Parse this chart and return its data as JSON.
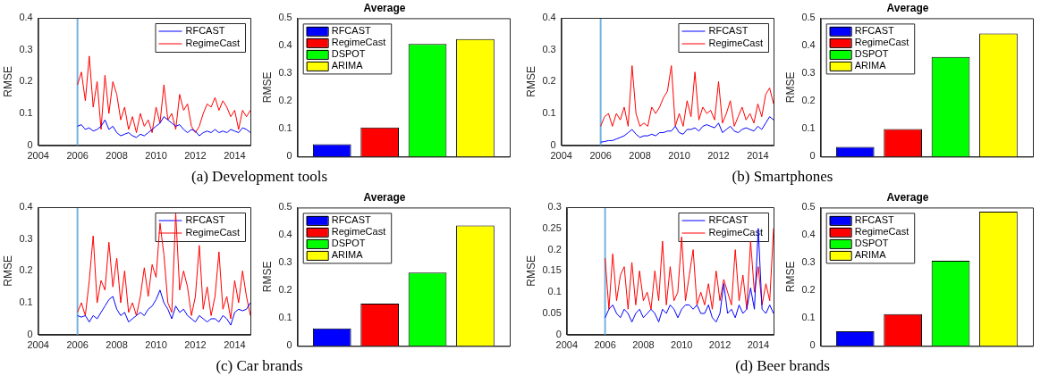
{
  "chart_data": [
    {
      "type": "line",
      "ylabel": "RMSE",
      "annotations": [
        "(a) Development tools"
      ],
      "legend": "top right",
      "x": [
        2006.0,
        2006.2,
        2006.4,
        2006.6,
        2006.8,
        2007.0,
        2007.2,
        2007.4,
        2007.6,
        2007.8,
        2008.0,
        2008.2,
        2008.4,
        2008.6,
        2008.8,
        2009.0,
        2009.2,
        2009.4,
        2009.6,
        2009.8,
        2010.0,
        2010.2,
        2010.4,
        2010.6,
        2010.8,
        2011.0,
        2011.2,
        2011.4,
        2011.6,
        2011.8,
        2012.0,
        2012.2,
        2012.4,
        2012.6,
        2012.8,
        2013.0,
        2013.2,
        2013.4,
        2013.6,
        2013.8,
        2014.0,
        2014.2,
        2014.4,
        2014.6,
        2014.8
      ],
      "xlim": [
        2004,
        2014.8
      ],
      "xticks": [
        2004,
        2006,
        2008,
        2010,
        2012,
        2014
      ],
      "ylim": [
        0,
        0.4
      ],
      "yticks": [
        0,
        0.1,
        0.2,
        0.3,
        0.4
      ],
      "ref_lines": [
        {
          "axis": "x",
          "value": 2006,
          "color": "#73b3e0"
        }
      ],
      "series": [
        {
          "name": "RFCAST",
          "color": "#0000ff",
          "values": [
            0.06,
            0.065,
            0.05,
            0.055,
            0.045,
            0.05,
            0.06,
            0.08,
            0.05,
            0.06,
            0.04,
            0.03,
            0.035,
            0.04,
            0.03,
            0.025,
            0.035,
            0.03,
            0.04,
            0.05,
            0.06,
            0.07,
            0.09,
            0.08,
            0.07,
            0.06,
            0.065,
            0.05,
            0.04,
            0.05,
            0.045,
            0.03,
            0.04,
            0.045,
            0.04,
            0.05,
            0.04,
            0.045,
            0.04,
            0.05,
            0.045,
            0.04,
            0.055,
            0.05,
            0.04
          ]
        },
        {
          "name": "RegimeCast",
          "color": "#ff0000",
          "values": [
            0.19,
            0.23,
            0.14,
            0.28,
            0.12,
            0.2,
            0.05,
            0.22,
            0.1,
            0.2,
            0.16,
            0.08,
            0.12,
            0.05,
            0.09,
            0.04,
            0.1,
            0.06,
            0.08,
            0.04,
            0.12,
            0.07,
            0.19,
            0.08,
            0.1,
            0.05,
            0.16,
            0.11,
            0.13,
            0.06,
            0.04,
            0.06,
            0.1,
            0.13,
            0.12,
            0.15,
            0.11,
            0.14,
            0.12,
            0.09,
            0.11,
            0.05,
            0.11,
            0.09,
            0.11
          ]
        }
      ]
    },
    {
      "type": "bar",
      "title": "Average",
      "ylabel": "RMSE",
      "legend": "top left",
      "tick_labels": "y",
      "categories": [
        null
      ],
      "ylim": [
        0,
        0.5
      ],
      "yticks": [
        0,
        0.1,
        0.2,
        0.3,
        0.4,
        0.5
      ],
      "series": [
        {
          "name": "RFCAST",
          "color": "#0000ff",
          "values": [
            0.045
          ]
        },
        {
          "name": "RegimeCast",
          "color": "#ff0000",
          "values": [
            0.105
          ]
        },
        {
          "name": "DSPOT",
          "color": "#00ff00",
          "values": [
            0.407
          ]
        },
        {
          "name": "ARIMA",
          "color": "#ffff00",
          "values": [
            0.425
          ]
        }
      ]
    },
    {
      "type": "line",
      "ylabel": "RMSE",
      "annotations": [
        "(b) Smartphones"
      ],
      "legend": "top right",
      "x": [
        2006.0,
        2006.2,
        2006.4,
        2006.6,
        2006.8,
        2007.0,
        2007.2,
        2007.4,
        2007.6,
        2007.8,
        2008.0,
        2008.2,
        2008.4,
        2008.6,
        2008.8,
        2009.0,
        2009.2,
        2009.4,
        2009.6,
        2009.8,
        2010.0,
        2010.2,
        2010.4,
        2010.6,
        2010.8,
        2011.0,
        2011.2,
        2011.4,
        2011.6,
        2011.8,
        2012.0,
        2012.2,
        2012.4,
        2012.6,
        2012.8,
        2013.0,
        2013.2,
        2013.4,
        2013.6,
        2013.8,
        2014.0,
        2014.2,
        2014.4,
        2014.6,
        2014.8
      ],
      "xlim": [
        2004,
        2014.8
      ],
      "xticks": [
        2004,
        2006,
        2008,
        2010,
        2012,
        2014
      ],
      "ylim": [
        0,
        0.4
      ],
      "yticks": [
        0,
        0.1,
        0.2,
        0.3,
        0.4
      ],
      "ref_lines": [
        {
          "axis": "x",
          "value": 2006,
          "color": "#73b3e0"
        }
      ],
      "series": [
        {
          "name": "RFCAST",
          "color": "#0000ff",
          "values": [
            0.01,
            0.012,
            0.015,
            0.015,
            0.02,
            0.025,
            0.03,
            0.04,
            0.05,
            0.035,
            0.025,
            0.03,
            0.03,
            0.035,
            0.03,
            0.04,
            0.04,
            0.045,
            0.045,
            0.06,
            0.04,
            0.035,
            0.05,
            0.05,
            0.055,
            0.045,
            0.06,
            0.065,
            0.06,
            0.055,
            0.07,
            0.04,
            0.05,
            0.06,
            0.045,
            0.04,
            0.05,
            0.055,
            0.05,
            0.045,
            0.06,
            0.05,
            0.07,
            0.09,
            0.08
          ]
        },
        {
          "name": "RegimeCast",
          "color": "#ff0000",
          "values": [
            0.06,
            0.09,
            0.1,
            0.06,
            0.1,
            0.08,
            0.12,
            0.06,
            0.25,
            0.1,
            0.06,
            0.07,
            0.06,
            0.12,
            0.1,
            0.12,
            0.15,
            0.17,
            0.25,
            0.06,
            0.1,
            0.06,
            0.14,
            0.09,
            0.23,
            0.08,
            0.12,
            0.1,
            0.11,
            0.08,
            0.2,
            0.07,
            0.1,
            0.14,
            0.06,
            0.09,
            0.12,
            0.08,
            0.1,
            0.07,
            0.13,
            0.09,
            0.16,
            0.18,
            0.13
          ]
        }
      ]
    },
    {
      "type": "bar",
      "title": "Average",
      "ylabel": "RMSE",
      "legend": "top left",
      "tick_labels": "y",
      "categories": [
        null
      ],
      "ylim": [
        0,
        0.5
      ],
      "yticks": [
        0,
        0.1,
        0.2,
        0.3,
        0.4,
        0.5
      ],
      "series": [
        {
          "name": "RFCAST",
          "color": "#0000ff",
          "values": [
            0.035
          ]
        },
        {
          "name": "RegimeCast",
          "color": "#ff0000",
          "values": [
            0.1
          ]
        },
        {
          "name": "DSPOT",
          "color": "#00ff00",
          "values": [
            0.36
          ]
        },
        {
          "name": "ARIMA",
          "color": "#ffff00",
          "values": [
            0.445
          ]
        }
      ]
    },
    {
      "type": "line",
      "ylabel": "RMSE",
      "annotations": [
        "(c) Car brands"
      ],
      "legend": "top right",
      "x": [
        2006.0,
        2006.2,
        2006.4,
        2006.6,
        2006.8,
        2007.0,
        2007.2,
        2007.4,
        2007.6,
        2007.8,
        2008.0,
        2008.2,
        2008.4,
        2008.6,
        2008.8,
        2009.0,
        2009.2,
        2009.4,
        2009.6,
        2009.8,
        2010.0,
        2010.2,
        2010.4,
        2010.6,
        2010.8,
        2011.0,
        2011.2,
        2011.4,
        2011.6,
        2011.8,
        2012.0,
        2012.2,
        2012.4,
        2012.6,
        2012.8,
        2013.0,
        2013.2,
        2013.4,
        2013.6,
        2013.8,
        2014.0,
        2014.2,
        2014.4,
        2014.6,
        2014.8
      ],
      "xlim": [
        2004,
        2014.8
      ],
      "xticks": [
        2004,
        2006,
        2008,
        2010,
        2012,
        2014
      ],
      "ylim": [
        0,
        0.4
      ],
      "yticks": [
        0,
        0.1,
        0.2,
        0.3,
        0.4
      ],
      "ref_lines": [
        {
          "axis": "x",
          "value": 2006,
          "color": "#73b3e0"
        }
      ],
      "series": [
        {
          "name": "RFCAST",
          "color": "#0000ff",
          "values": [
            0.06,
            0.055,
            0.06,
            0.04,
            0.06,
            0.05,
            0.07,
            0.09,
            0.11,
            0.12,
            0.08,
            0.06,
            0.07,
            0.04,
            0.05,
            0.06,
            0.07,
            0.06,
            0.08,
            0.09,
            0.11,
            0.14,
            0.1,
            0.08,
            0.05,
            0.09,
            0.07,
            0.08,
            0.06,
            0.05,
            0.04,
            0.06,
            0.05,
            0.04,
            0.05,
            0.05,
            0.04,
            0.06,
            0.05,
            0.03,
            0.07,
            0.08,
            0.075,
            0.08,
            0.1
          ]
        },
        {
          "name": "RegimeCast",
          "color": "#ff0000",
          "values": [
            0.07,
            0.1,
            0.06,
            0.17,
            0.31,
            0.1,
            0.17,
            0.14,
            0.29,
            0.15,
            0.24,
            0.1,
            0.2,
            0.07,
            0.1,
            0.06,
            0.12,
            0.21,
            0.12,
            0.22,
            0.18,
            0.35,
            0.25,
            0.1,
            0.07,
            0.38,
            0.14,
            0.2,
            0.15,
            0.06,
            0.12,
            0.28,
            0.08,
            0.15,
            0.06,
            0.12,
            0.26,
            0.08,
            0.12,
            0.05,
            0.17,
            0.1,
            0.2,
            0.12,
            0.06
          ]
        }
      ]
    },
    {
      "type": "bar",
      "title": "Average",
      "ylabel": "RMSE",
      "legend": "top left",
      "tick_labels": "y",
      "categories": [
        null
      ],
      "ylim": [
        0,
        0.5
      ],
      "yticks": [
        0,
        0.1,
        0.2,
        0.3,
        0.4,
        0.5
      ],
      "series": [
        {
          "name": "RFCAST",
          "color": "#0000ff",
          "values": [
            0.063
          ]
        },
        {
          "name": "RegimeCast",
          "color": "#ff0000",
          "values": [
            0.153
          ]
        },
        {
          "name": "DSPOT",
          "color": "#00ff00",
          "values": [
            0.265
          ]
        },
        {
          "name": "ARIMA",
          "color": "#ffff00",
          "values": [
            0.435
          ]
        }
      ]
    },
    {
      "type": "line",
      "ylabel": "RMSE",
      "annotations": [
        "(d) Beer brands"
      ],
      "legend": "top right",
      "x": [
        2006.0,
        2006.2,
        2006.4,
        2006.6,
        2006.8,
        2007.0,
        2007.2,
        2007.4,
        2007.6,
        2007.8,
        2008.0,
        2008.2,
        2008.4,
        2008.6,
        2008.8,
        2009.0,
        2009.2,
        2009.4,
        2009.6,
        2009.8,
        2010.0,
        2010.2,
        2010.4,
        2010.6,
        2010.8,
        2011.0,
        2011.2,
        2011.4,
        2011.6,
        2011.8,
        2012.0,
        2012.2,
        2012.4,
        2012.6,
        2012.8,
        2013.0,
        2013.2,
        2013.4,
        2013.6,
        2013.8,
        2014.0,
        2014.2,
        2014.4,
        2014.6,
        2014.8
      ],
      "xlim": [
        2004,
        2014.8
      ],
      "xticks": [
        2004,
        2006,
        2008,
        2010,
        2012,
        2014
      ],
      "ylim": [
        0,
        0.3
      ],
      "yticks": [
        0,
        0.05,
        0.1,
        0.15,
        0.2,
        0.25,
        0.3
      ],
      "ref_lines": [
        {
          "axis": "x",
          "value": 2006,
          "color": "#73b3e0"
        }
      ],
      "series": [
        {
          "name": "RFCAST",
          "color": "#0000ff",
          "values": [
            0.04,
            0.06,
            0.07,
            0.05,
            0.04,
            0.06,
            0.05,
            0.03,
            0.05,
            0.06,
            0.04,
            0.05,
            0.06,
            0.05,
            0.03,
            0.06,
            0.05,
            0.07,
            0.06,
            0.04,
            0.06,
            0.07,
            0.07,
            0.06,
            0.07,
            0.05,
            0.05,
            0.07,
            0.04,
            0.03,
            0.05,
            0.12,
            0.05,
            0.06,
            0.04,
            0.07,
            0.05,
            0.06,
            0.11,
            0.06,
            0.25,
            0.06,
            0.05,
            0.07,
            0.05
          ]
        },
        {
          "name": "RegimeCast",
          "color": "#ff0000",
          "values": [
            0.18,
            0.06,
            0.19,
            0.08,
            0.14,
            0.16,
            0.06,
            0.17,
            0.07,
            0.15,
            0.08,
            0.1,
            0.06,
            0.15,
            0.08,
            0.22,
            0.07,
            0.16,
            0.08,
            0.1,
            0.23,
            0.08,
            0.14,
            0.2,
            0.07,
            0.1,
            0.07,
            0.12,
            0.06,
            0.15,
            0.08,
            0.13,
            0.1,
            0.07,
            0.2,
            0.08,
            0.14,
            0.06,
            0.22,
            0.1,
            0.16,
            0.07,
            0.12,
            0.08,
            0.25
          ]
        }
      ]
    },
    {
      "type": "bar",
      "title": "Average",
      "ylabel": "RMSE",
      "legend": "top left",
      "tick_labels": "y",
      "categories": [
        null
      ],
      "ylim": [
        0,
        0.5
      ],
      "yticks": [
        0,
        0.1,
        0.2,
        0.3,
        0.4,
        0.5
      ],
      "series": [
        {
          "name": "RFCAST",
          "color": "#0000ff",
          "values": [
            0.053
          ]
        },
        {
          "name": "RegimeCast",
          "color": "#ff0000",
          "values": [
            0.115
          ]
        },
        {
          "name": "DSPOT",
          "color": "#00ff00",
          "values": [
            0.308
          ]
        },
        {
          "name": "ARIMA",
          "color": "#ffff00",
          "values": [
            0.485
          ]
        }
      ]
    }
  ]
}
